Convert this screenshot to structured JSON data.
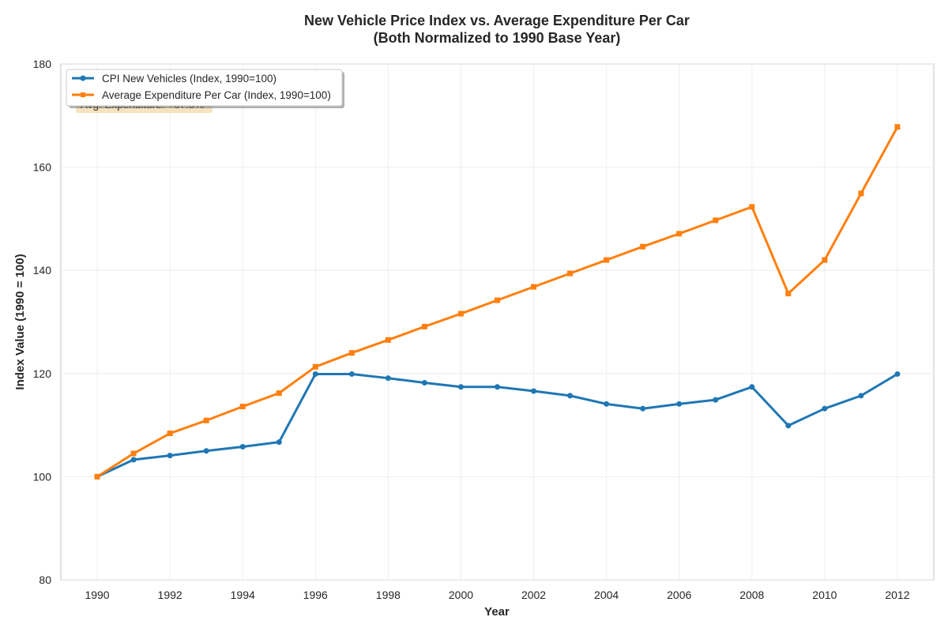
{
  "chart_data": {
    "type": "line",
    "title_lines": [
      "New Vehicle Price Index vs. Average Expenditure Per Car",
      "(Both Normalized to 1990 Base Year)"
    ],
    "xlabel": "Year",
    "ylabel": "Index Value (1990 = 100)",
    "xlim": [
      1989,
      2013
    ],
    "ylim": [
      80,
      180
    ],
    "x_ticks": [
      1990,
      1992,
      1994,
      1996,
      1998,
      2000,
      2002,
      2004,
      2006,
      2008,
      2010,
      2012
    ],
    "y_ticks": [
      80,
      100,
      120,
      140,
      160,
      180
    ],
    "grid": true,
    "legend_position": "upper-left",
    "x": [
      1990,
      1991,
      1992,
      1993,
      1994,
      1995,
      1996,
      1997,
      1998,
      1999,
      2000,
      2001,
      2002,
      2003,
      2004,
      2005,
      2006,
      2007,
      2008,
      2009,
      2010,
      2011,
      2012
    ],
    "series": [
      {
        "name": "CPI New Vehicles (Index, 1990=100)",
        "color": "#1f77b4",
        "marker": "circle",
        "values": [
          100.0,
          103.3,
          104.1,
          105.0,
          105.8,
          106.7,
          119.9,
          119.9,
          119.1,
          118.2,
          117.4,
          117.4,
          116.6,
          115.7,
          114.1,
          113.2,
          114.1,
          114.9,
          117.4,
          109.9,
          113.2,
          115.7,
          119.9
        ]
      },
      {
        "name": "Average Expenditure Per Car (Index, 1990=100)",
        "color": "#ff7f0e",
        "marker": "square",
        "values": [
          100.0,
          104.5,
          108.4,
          110.9,
          113.6,
          116.2,
          121.3,
          124.0,
          126.5,
          129.1,
          131.6,
          134.2,
          136.8,
          139.4,
          142.0,
          144.6,
          147.1,
          149.7,
          152.3,
          135.5,
          142.0,
          154.9,
          167.8
        ]
      }
    ],
    "annotations": [
      {
        "text": "Avg. Expenditure: +67.8%",
        "color": "#f5deb3"
      }
    ]
  }
}
